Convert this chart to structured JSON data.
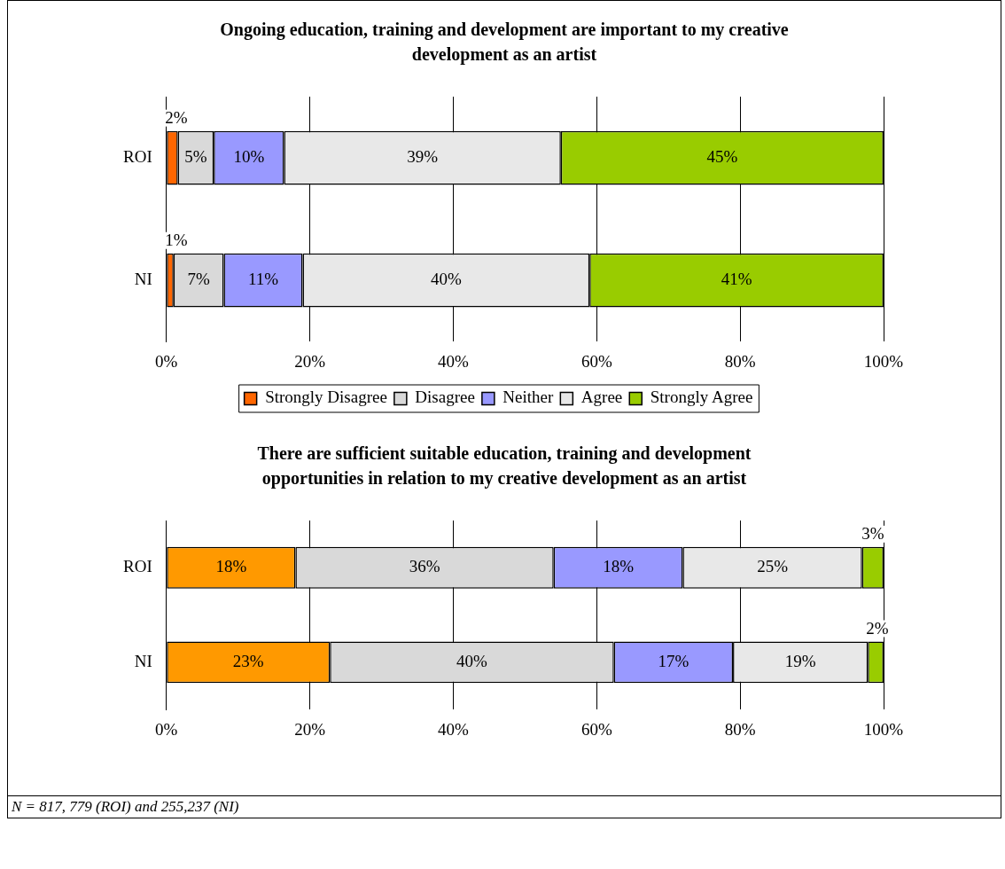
{
  "chart_data": [
    {
      "type": "bar",
      "orientation": "horizontal",
      "stacked": true,
      "title": "Ongoing education, training and development are important to my creative development as an artist",
      "categories": [
        "ROI",
        "NI"
      ],
      "xlim": [
        0,
        100
      ],
      "xticks": [
        {
          "value": 0,
          "label": "0%"
        },
        {
          "value": 20,
          "label": "20%"
        },
        {
          "value": 40,
          "label": "40%"
        },
        {
          "value": 60,
          "label": "60%"
        },
        {
          "value": 80,
          "label": "80%"
        },
        {
          "value": 100,
          "label": "100%"
        }
      ],
      "grid": "x",
      "legend": "bottom",
      "series": [
        {
          "name": "Strongly Disagree",
          "color": "#ff6600",
          "values": [
            1.6,
            1
          ],
          "value_labels": [
            "2%",
            "1%"
          ]
        },
        {
          "name": "Disagree",
          "color": "#d9d9d9",
          "values": [
            5,
            7
          ],
          "value_labels": [
            "5%",
            "7%"
          ]
        },
        {
          "name": "Neither",
          "color": "#9999ff",
          "values": [
            9.8,
            11
          ],
          "value_labels": [
            "10%",
            "11%"
          ]
        },
        {
          "name": "Agree",
          "color": "#e8e8e8",
          "values": [
            38.6,
            40
          ],
          "value_labels": [
            "39%",
            "40%"
          ]
        },
        {
          "name": "Strongly Agree",
          "color": "#99cc00",
          "values": [
            45,
            41
          ],
          "value_labels": [
            "45%",
            "41%"
          ]
        }
      ]
    },
    {
      "type": "bar",
      "orientation": "horizontal",
      "stacked": true,
      "title": "There are sufficient suitable education, training and development opportunities in relation to my creative development as an artist",
      "categories": [
        "ROI",
        "NI"
      ],
      "xlim": [
        0,
        100
      ],
      "xticks": [
        {
          "value": 0,
          "label": "0%"
        },
        {
          "value": 20,
          "label": "20%"
        },
        {
          "value": 40,
          "label": "40%"
        },
        {
          "value": 60,
          "label": "60%"
        },
        {
          "value": 80,
          "label": "80%"
        },
        {
          "value": 100,
          "label": "100%"
        }
      ],
      "grid": "x",
      "annotations": [
        "N = 817, 779 (ROI) and 255,237 (NI)"
      ],
      "series": [
        {
          "color": "#ff9900",
          "values": [
            18,
            22.8
          ],
          "value_labels": [
            "18%",
            "23%"
          ]
        },
        {
          "color": "#d9d9d9",
          "values": [
            36,
            39.6
          ],
          "value_labels": [
            "36%",
            "40%"
          ]
        },
        {
          "color": "#9999ff",
          "values": [
            18,
            16.6
          ],
          "value_labels": [
            "18%",
            "17%"
          ]
        },
        {
          "color": "#e8e8e8",
          "values": [
            25,
            18.8
          ],
          "value_labels": [
            "25%",
            "19%"
          ]
        },
        {
          "color": "#99cc00",
          "values": [
            3,
            2.2
          ],
          "value_labels": [
            "3%",
            "2%"
          ]
        }
      ]
    }
  ]
}
